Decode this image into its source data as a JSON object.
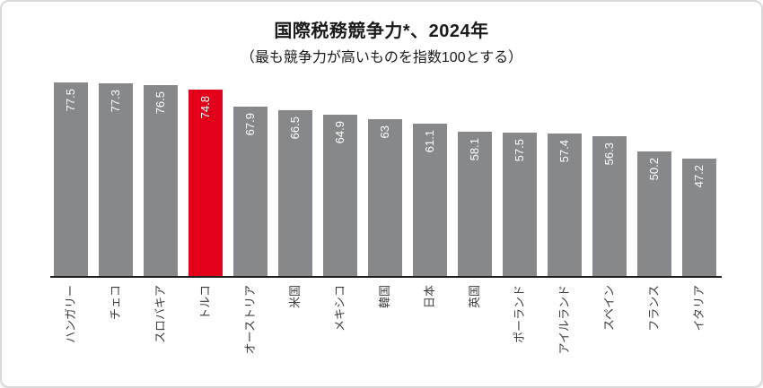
{
  "chart_data": {
    "type": "bar",
    "title": "国際税務競争力*、2024年",
    "subtitle": "（最も競争力が高いものを指数100とする）",
    "categories": [
      "ハンガリー",
      "チェコ",
      "スロバキア",
      "トルコ",
      "オーストリア",
      "米国",
      "メキシコ",
      "韓国",
      "日本",
      "英国",
      "ポーランド",
      "アイルランド",
      "スペイン",
      "フランス",
      "イタリア"
    ],
    "values": [
      77.5,
      77.3,
      76.5,
      74.8,
      67.9,
      66.5,
      64.9,
      63,
      61.1,
      58.1,
      57.5,
      57.4,
      56.3,
      50.2,
      47.2
    ],
    "highlight_index": 3,
    "highlight_category": "トルコ",
    "bar_color": "#86888a",
    "highlight_color": "#e2001a",
    "value_label_color": "#ffffff",
    "axis_color": "#1f1f1f",
    "xlabel": "",
    "ylabel": "",
    "ylim": [
      0,
      80
    ],
    "grid": false,
    "legend": "none",
    "value_labels_shown": true,
    "orientation": "vertical"
  }
}
